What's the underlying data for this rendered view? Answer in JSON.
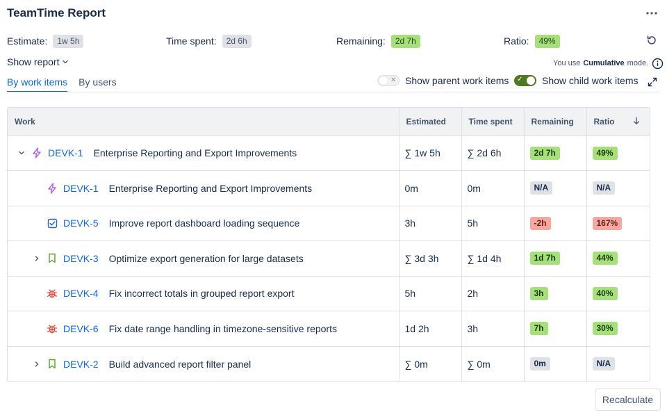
{
  "app": {
    "title": "TeamTime Report"
  },
  "summary": {
    "estimate_label": "Estimate:",
    "estimate_value": "1w 5h",
    "spent_label": "Time spent:",
    "spent_value": "2d 6h",
    "remaining_label": "Remaining:",
    "remaining_value": "2d 7h",
    "ratio_label": "Ratio:",
    "ratio_value": "49%"
  },
  "report": {
    "show_report_label": "Show report",
    "mode_prefix": "You use",
    "mode_name": "Cumulative",
    "mode_suffix": "mode."
  },
  "tabs": [
    {
      "label": "By work items",
      "active": true
    },
    {
      "label": "By users",
      "active": false
    }
  ],
  "toggles": {
    "parent_label": "Show parent work items",
    "parent_on": false,
    "child_label": "Show child work items",
    "child_on": true
  },
  "table": {
    "columns": [
      "Work",
      "Estimated",
      "Time spent",
      "Remaining",
      "Ratio"
    ],
    "rows": [
      {
        "indent": 0,
        "chevron": "down",
        "type": "epic",
        "key": "DEVK-1",
        "summary": "Enterprise Reporting and Export Improvements",
        "estimated": "∑ 1w 5h",
        "spent": "∑ 2d 6h",
        "remaining": "2d 7h",
        "remaining_style": "green",
        "ratio": "49%",
        "ratio_style": "green"
      },
      {
        "indent": 1,
        "chevron": "none",
        "type": "epic",
        "key": "DEVK-1",
        "summary": "Enterprise Reporting and Export Improvements",
        "estimated": "0m",
        "spent": "0m",
        "remaining": "N/A",
        "remaining_style": "gray",
        "ratio": "N/A",
        "ratio_style": "gray"
      },
      {
        "indent": 1,
        "chevron": "none",
        "type": "task",
        "key": "DEVK-5",
        "summary": "Improve report dashboard loading sequence",
        "estimated": "3h",
        "spent": "5h",
        "remaining": "-2h",
        "remaining_style": "red",
        "ratio": "167%",
        "ratio_style": "red"
      },
      {
        "indent": 1,
        "chevron": "right",
        "type": "story",
        "key": "DEVK-3",
        "summary": "Optimize export generation for large datasets",
        "estimated": "∑ 3d 3h",
        "spent": "∑ 1d 4h",
        "remaining": "1d 7h",
        "remaining_style": "green",
        "ratio": "44%",
        "ratio_style": "green"
      },
      {
        "indent": 1,
        "chevron": "none",
        "type": "bug",
        "key": "DEVK-4",
        "summary": "Fix incorrect totals in grouped report export",
        "estimated": "5h",
        "spent": "2h",
        "remaining": "3h",
        "remaining_style": "green",
        "ratio": "40%",
        "ratio_style": "green"
      },
      {
        "indent": 1,
        "chevron": "none",
        "type": "bug",
        "key": "DEVK-6",
        "summary": "Fix date range handling in timezone-sensitive reports",
        "estimated": "1d 2h",
        "spent": "3h",
        "remaining": "7h",
        "remaining_style": "green",
        "ratio": "30%",
        "ratio_style": "green"
      },
      {
        "indent": 1,
        "chevron": "right",
        "type": "story",
        "key": "DEVK-2",
        "summary": "Build advanced report filter panel",
        "estimated": "∑ 0m",
        "spent": "∑ 0m",
        "remaining": "0m",
        "remaining_style": "gray",
        "ratio": "N/A",
        "ratio_style": "gray"
      }
    ]
  },
  "actions": {
    "recalculate_label": "Recalculate"
  },
  "colors": {
    "link_blue": "#0c66e4",
    "toggle_green": "#4f7a21",
    "lozenge_green": "#a6e07a",
    "lozenge_red": "#f9a79e",
    "lozenge_gray": "#dfe1e6",
    "epic_purple": "#b360e6",
    "task_blue": "#1868db",
    "story_green": "#5b9f26",
    "bug_red": "#e2483d"
  },
  "icons": {
    "more": "more-horizontal-icon",
    "refresh": "refresh-icon",
    "info": "info-icon",
    "expand": "expand-icon",
    "sort": "arrow-down-icon",
    "epic": "lightning-icon",
    "task": "checkbox-icon",
    "story": "bookmark-icon",
    "bug": "bug-icon"
  }
}
